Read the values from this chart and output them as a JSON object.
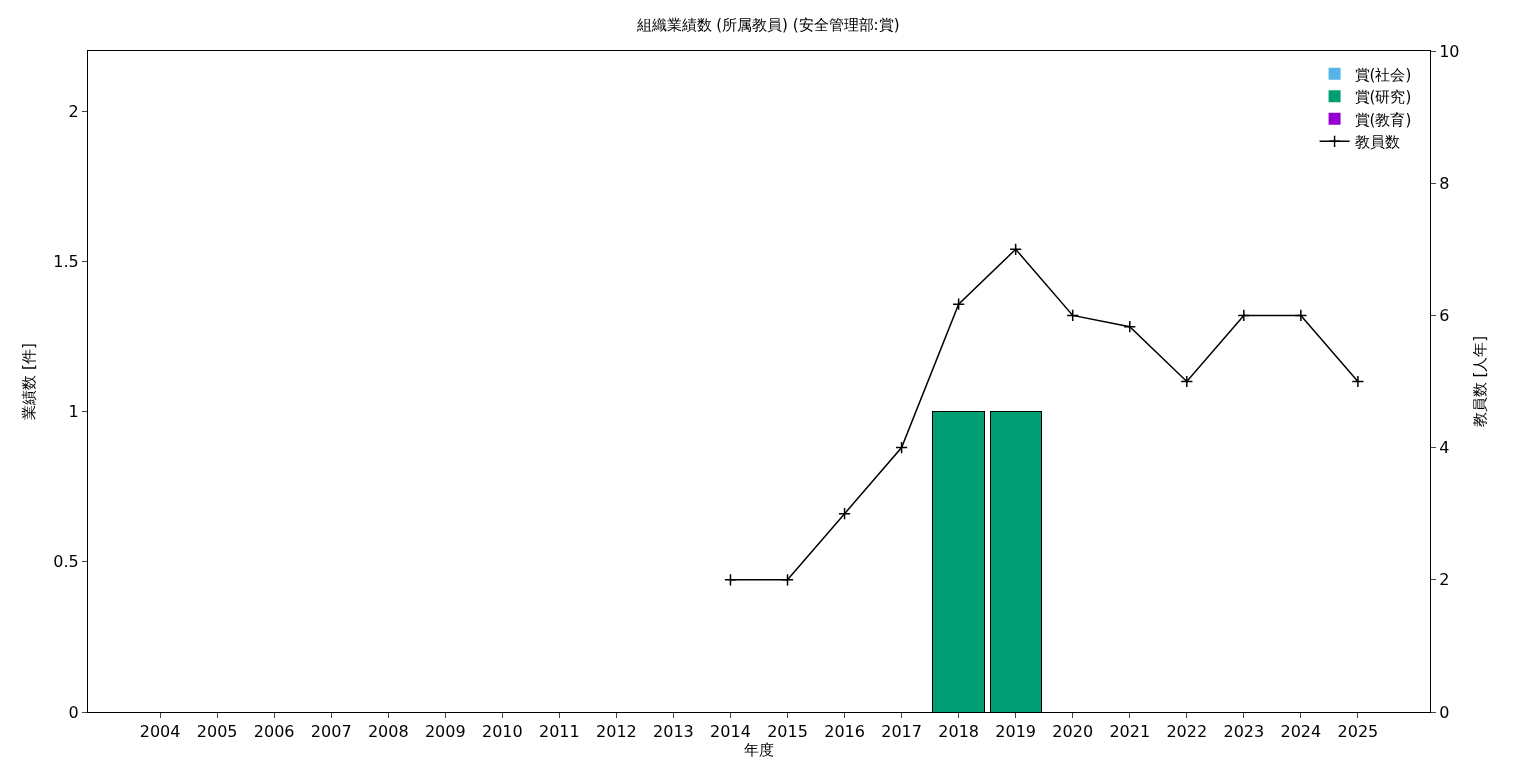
{
  "chart_data": {
    "type": "bar",
    "title": "組織業績数 (所属教員) (安全管理部:賞)",
    "xlabel": "年度",
    "ylabel": "業績数 [件]",
    "y2label": "教員数 [人年]",
    "categories": [
      "2004",
      "2005",
      "2006",
      "2007",
      "2008",
      "2009",
      "2010",
      "2011",
      "2012",
      "2013",
      "2014",
      "2015",
      "2016",
      "2017",
      "2018",
      "2019",
      "2020",
      "2021",
      "2022",
      "2023",
      "2024",
      "2025"
    ],
    "stacked": true,
    "series": [
      {
        "name": "賞(社会)",
        "color": "#56b4e9",
        "values": [
          0,
          0,
          0,
          0,
          0,
          0,
          0,
          0,
          0,
          0,
          0,
          0,
          0,
          0,
          0,
          0,
          0,
          0,
          0,
          0,
          0,
          0
        ]
      },
      {
        "name": "賞(研究)",
        "color": "#009e73",
        "values": [
          0,
          0,
          0,
          0,
          0,
          0,
          0,
          0,
          0,
          0,
          0,
          0,
          0,
          0,
          1,
          1,
          0,
          0,
          0,
          0,
          0,
          0
        ]
      },
      {
        "name": "賞(教育)",
        "color": "#9400d3",
        "values": [
          0,
          0,
          0,
          0,
          0,
          0,
          0,
          0,
          0,
          0,
          0,
          0,
          0,
          0,
          0,
          0,
          0,
          0,
          0,
          0,
          0,
          0
        ]
      },
      {
        "name": "教員数",
        "type": "line",
        "axis": "y2",
        "color": "#000000",
        "marker": "cross",
        "values": [
          null,
          null,
          null,
          null,
          null,
          null,
          null,
          null,
          null,
          null,
          2,
          2,
          3,
          4,
          6.17,
          7,
          6,
          5.83,
          5,
          6,
          6,
          5
        ]
      }
    ],
    "ylim": [
      0,
      2.2
    ],
    "yticks": [
      0,
      0.5,
      1,
      1.5,
      2
    ],
    "y2lim": [
      0,
      10
    ],
    "y2ticks": [
      0,
      2,
      4,
      6,
      8,
      10
    ],
    "legend": "top right"
  }
}
